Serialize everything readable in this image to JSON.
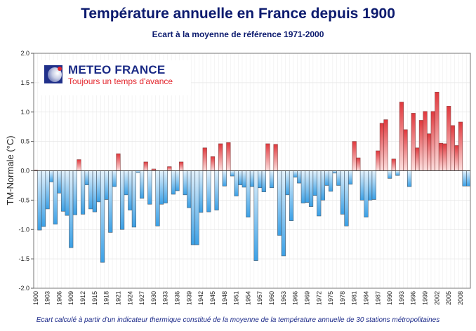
{
  "header": {
    "title": "Température annuelle en France depuis 1900",
    "subtitle": "Ecart à la moyenne de référence 1971-2000"
  },
  "logo": {
    "name": "METEO FRANCE",
    "tagline": "Toujours un temps d'avance",
    "icon": "globe-icon"
  },
  "footnote": "Ecart calculé à partir d'un indicateur thermique constitué de la moyenne de la température annuelle de 30 stations métropolitaines",
  "colors": {
    "positive_dark": "#e0383d",
    "positive_light": "#fde0df",
    "negative_dark": "#3aa0e6",
    "negative_light": "#e4f2fc",
    "title": "#0b1a6e"
  },
  "chart_data": {
    "type": "bar",
    "title": "Température annuelle en France depuis 1900",
    "subtitle": "Ecart à la moyenne de référence 1971-2000",
    "xlabel": "",
    "ylabel": "TM-Normale (°C)",
    "ylim": [
      -2.0,
      2.0
    ],
    "yticks": [
      "2.0",
      "1.5",
      "1.0",
      "0.5",
      "0.0",
      "-0.5",
      "-1.0",
      "-1.5",
      "-2.0"
    ],
    "ytick_values": [
      2.0,
      1.5,
      1.0,
      0.5,
      0.0,
      -0.5,
      -1.0,
      -1.5,
      -2.0
    ],
    "xtick_labels": [
      "1900",
      "1903",
      "1906",
      "1909",
      "1912",
      "1915",
      "1918",
      "1921",
      "1924",
      "1927",
      "1930",
      "1933",
      "1936",
      "1939",
      "1942",
      "1945",
      "1948",
      "1951",
      "1954",
      "1957",
      "1960",
      "1963",
      "1966",
      "1969",
      "1972",
      "1975",
      "1978",
      "1981",
      "1984",
      "1987",
      "1990",
      "1993",
      "1996",
      "1999",
      "2002",
      "2005",
      "2008"
    ],
    "grid": true,
    "legend": "none",
    "categories": [
      1900,
      1901,
      1902,
      1903,
      1904,
      1905,
      1906,
      1907,
      1908,
      1909,
      1910,
      1911,
      1912,
      1913,
      1914,
      1915,
      1916,
      1917,
      1918,
      1919,
      1920,
      1921,
      1922,
      1923,
      1924,
      1925,
      1926,
      1927,
      1928,
      1929,
      1930,
      1931,
      1932,
      1933,
      1934,
      1935,
      1936,
      1937,
      1938,
      1939,
      1940,
      1941,
      1942,
      1943,
      1944,
      1945,
      1946,
      1947,
      1948,
      1949,
      1950,
      1951,
      1952,
      1953,
      1954,
      1955,
      1956,
      1957,
      1958,
      1959,
      1960,
      1961,
      1962,
      1963,
      1964,
      1965,
      1966,
      1967,
      1968,
      1969,
      1970,
      1971,
      1972,
      1973,
      1974,
      1975,
      1976,
      1977,
      1978,
      1979,
      1980,
      1981,
      1982,
      1983,
      1984,
      1985,
      1986,
      1987,
      1988,
      1989,
      1990,
      1991,
      1992,
      1993,
      1994,
      1995,
      1996,
      1997,
      1998,
      1999,
      2000,
      2001,
      2002,
      2003,
      2004,
      2005,
      2006,
      2007,
      2008,
      2009,
      2010
    ],
    "values": [
      0.01,
      -1.01,
      -0.95,
      -0.65,
      -0.19,
      -0.91,
      -0.38,
      -0.69,
      -0.76,
      -1.31,
      -0.75,
      0.19,
      -0.74,
      -0.24,
      -0.65,
      -0.7,
      -0.53,
      -1.56,
      -0.49,
      -1.05,
      -0.27,
      0.29,
      -1.0,
      -0.41,
      -0.67,
      -0.96,
      -0.03,
      -0.47,
      0.15,
      -0.57,
      0.03,
      -0.94,
      -0.57,
      -0.55,
      0.07,
      -0.4,
      -0.34,
      0.15,
      -0.41,
      -0.63,
      -1.26,
      -1.26,
      -0.71,
      0.39,
      -0.7,
      0.24,
      -0.67,
      0.46,
      -0.26,
      0.48,
      -0.09,
      -0.43,
      -0.24,
      -0.28,
      -0.79,
      -0.27,
      -1.53,
      -0.29,
      -0.36,
      0.46,
      -0.29,
      0.45,
      -1.1,
      -1.45,
      -0.41,
      -0.85,
      -0.11,
      -0.21,
      -0.55,
      -0.54,
      -0.61,
      -0.42,
      -0.77,
      -0.5,
      -0.25,
      -0.35,
      -0.04,
      -0.25,
      -0.74,
      -0.94,
      -0.23,
      0.5,
      0.22,
      -0.5,
      -0.79,
      -0.5,
      -0.49,
      0.34,
      0.81,
      0.87,
      -0.13,
      0.2,
      -0.08,
      1.17,
      0.7,
      -0.27,
      0.98,
      0.39,
      0.86,
      1.01,
      0.63,
      1.01,
      1.34,
      0.47,
      0.46,
      1.1,
      0.77,
      0.43,
      0.83,
      -0.26,
      -0.26
    ]
  }
}
